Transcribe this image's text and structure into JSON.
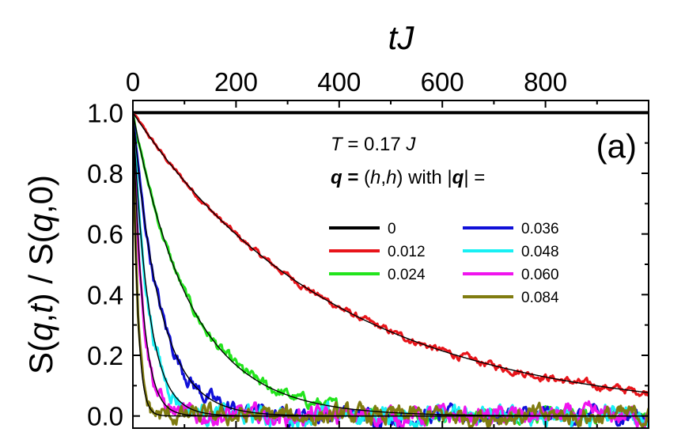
{
  "chart_data": {
    "type": "line",
    "title": "",
    "xlabel_parts": [
      {
        "text": "tJ",
        "italic": true
      }
    ],
    "ylabel_parts": [
      {
        "text": "S(",
        "italic": false
      },
      {
        "text": "q",
        "italic": true
      },
      {
        "text": ",",
        "italic": false
      },
      {
        "text": "t",
        "italic": true
      },
      {
        "text": ") / S(",
        "italic": false
      },
      {
        "text": "q",
        "italic": true
      },
      {
        "text": ",0)",
        "italic": false
      }
    ],
    "x_axis_position": "top",
    "xlim": [
      0,
      1000
    ],
    "ylim": [
      -0.04,
      1.04
    ],
    "xticks": [
      0,
      200,
      400,
      600,
      800
    ],
    "xtick_labels": [
      "0",
      "200",
      "400",
      "600",
      "800"
    ],
    "yticks": [
      0.0,
      0.2,
      0.4,
      0.6,
      0.8,
      1.0
    ],
    "ytick_labels": [
      "0.0",
      "0.2",
      "0.4",
      "0.6",
      "0.8",
      "1.0"
    ],
    "grid": false,
    "panel_label": "(a)",
    "annotation_lines": [
      [
        {
          "text": "T",
          "italic": true,
          "bold": false
        },
        {
          "text": " = 0.17 ",
          "italic": false,
          "bold": false
        },
        {
          "text": "J",
          "italic": true,
          "bold": false
        }
      ],
      [
        {
          "text": "q",
          "italic": true,
          "bold": true
        },
        {
          "text": " = ",
          "italic": false,
          "bold": true
        },
        {
          "text": "(",
          "italic": false,
          "bold": false
        },
        {
          "text": "h",
          "italic": true,
          "bold": false
        },
        {
          "text": ",",
          "italic": false,
          "bold": false
        },
        {
          "text": "h",
          "italic": true,
          "bold": false
        },
        {
          "text": ")  with |",
          "italic": false,
          "bold": false
        },
        {
          "text": "q",
          "italic": true,
          "bold": true
        },
        {
          "text": "| =",
          "italic": false,
          "bold": false
        }
      ]
    ],
    "legend_placement": "center-right",
    "series": [
      {
        "name": "0",
        "color": "#000000",
        "decay_time": null,
        "noise": 0
      },
      {
        "name": "0.012",
        "color": "#e8141a",
        "decay_time": 390,
        "noise": 0.004
      },
      {
        "name": "0.024",
        "color": "#22e41c",
        "decay_time": 112,
        "noise": 0.006
      },
      {
        "name": "0.036",
        "color": "#1010d8",
        "decay_time": 52,
        "noise": 0.008
      },
      {
        "name": "0.048",
        "color": "#18f0f4",
        "decay_time": 30,
        "noise": 0.009
      },
      {
        "name": "0.060",
        "color": "#f014ee",
        "decay_time": 19,
        "noise": 0.009
      },
      {
        "name": "0.084",
        "color": "#807c10",
        "decay_time": 9,
        "noise": 0.009
      }
    ],
    "fit_color": "#000000"
  }
}
